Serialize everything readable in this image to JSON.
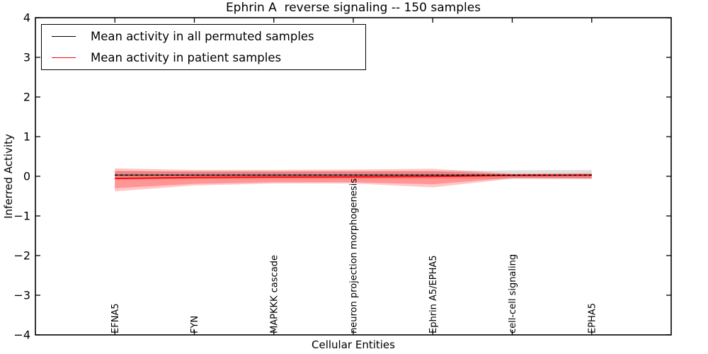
{
  "chart_data": {
    "type": "line",
    "title": "Ephrin A  reverse signaling -- 150 samples",
    "xlabel": "Cellular Entities",
    "ylabel": "Inferred Activity",
    "xlim": [
      0,
      8
    ],
    "ylim": [
      -4,
      4
    ],
    "grid": false,
    "ytick_values": [
      4,
      3,
      2,
      1,
      0,
      -1,
      -2,
      -3,
      -4
    ],
    "ytick_labels": [
      "4",
      "3",
      "2",
      "1",
      "0",
      "−1",
      "−2",
      "−3",
      "−4"
    ],
    "categories": [
      "EFNA5",
      "FYN",
      "MAPKKK cascade",
      "neuron projection morphogenesis",
      "Ephrin A5/EPHA5",
      "cell-cell signaling",
      "EPHA5"
    ],
    "x": [
      1,
      2,
      3,
      4,
      5,
      6,
      7
    ],
    "series": [
      {
        "name": "Mean activity in all permuted samples",
        "color": "#000000",
        "linestyle": "dashed",
        "values": [
          0.03,
          0.03,
          0.03,
          0.03,
          0.03,
          0.03,
          0.03
        ]
      },
      {
        "name": "Mean activity in patient samples",
        "color": "#ff0000",
        "linestyle": "solid",
        "values": [
          -0.055,
          -0.03,
          -0.02,
          -0.015,
          -0.005,
          0.02,
          0.03
        ]
      }
    ],
    "bands": [
      {
        "name": "permuted-samples-std-band",
        "color": "#000000",
        "opacity": 0.12,
        "upper": [
          0.12,
          0.12,
          0.12,
          0.12,
          0.13,
          0.15,
          0.16
        ],
        "lower": [
          -0.07,
          -0.07,
          -0.07,
          -0.07,
          -0.06,
          -0.06,
          -0.06
        ]
      },
      {
        "name": "patient-samples-std-band-outer",
        "color": "#ff0000",
        "opacity": 0.22,
        "upper": [
          0.2,
          0.16,
          0.16,
          0.17,
          0.19,
          0.07,
          0.08
        ],
        "lower": [
          -0.38,
          -0.23,
          -0.18,
          -0.18,
          -0.28,
          -0.06,
          -0.07
        ]
      },
      {
        "name": "patient-samples-std-band-inner",
        "color": "#ff0000",
        "opacity": 0.25,
        "upper": [
          0.14,
          0.12,
          0.12,
          0.13,
          0.13,
          0.05,
          0.06
        ],
        "lower": [
          -0.3,
          -0.19,
          -0.15,
          -0.15,
          -0.2,
          -0.04,
          -0.05
        ]
      }
    ],
    "legend": {
      "position": "upper left",
      "entries": [
        {
          "label": "Mean activity in all permuted samples",
          "color": "#000000"
        },
        {
          "label": "Mean activity in patient samples",
          "color": "#ff0000"
        }
      ]
    }
  }
}
